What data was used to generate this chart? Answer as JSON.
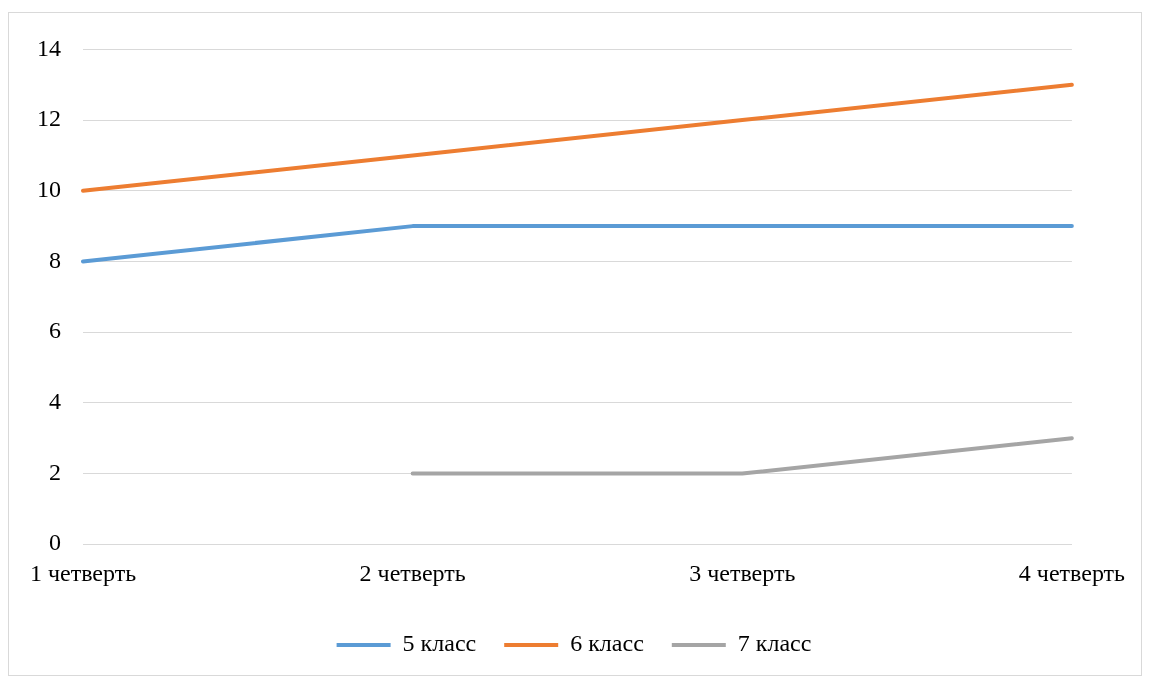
{
  "chart_data": {
    "type": "line",
    "categories": [
      "1 четверть",
      "2 четверть",
      "3 четверть",
      "4 четверть"
    ],
    "series": [
      {
        "name": "5 класс",
        "color": "#5b9bd5",
        "values": [
          8,
          9,
          9,
          9
        ]
      },
      {
        "name": "6 класс",
        "color": "#ed7d31",
        "values": [
          10,
          11,
          12,
          13
        ]
      },
      {
        "name": "7 класс",
        "color": "#a5a5a5",
        "values": [
          null,
          2,
          2,
          3
        ]
      }
    ],
    "ylim": [
      0,
      14
    ],
    "yticks": [
      0,
      2,
      4,
      6,
      8,
      10,
      12,
      14
    ],
    "grid": "y",
    "legend": "bottom",
    "marker": "none",
    "line_style": "solid"
  }
}
